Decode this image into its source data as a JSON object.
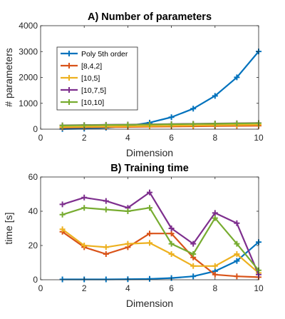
{
  "chart_data": [
    {
      "type": "line",
      "title": "A) Number of parameters",
      "xlabel": "Dimension",
      "ylabel": "# parameters",
      "xlim": [
        0,
        10
      ],
      "ylim": [
        0,
        4000
      ],
      "xticks": [
        "0",
        "2",
        "4",
        "6",
        "8",
        "10"
      ],
      "yticks": [
        "0",
        "1000",
        "2000",
        "3000",
        "4000"
      ],
      "legend_position": "top-left",
      "marker": "plus",
      "x": [
        1,
        2,
        3,
        4,
        5,
        6,
        7,
        8,
        9,
        10
      ],
      "series": [
        {
          "name": "Poly 5th order",
          "color": "#0072BD",
          "values": [
            6,
            21,
            56,
            126,
            252,
            462,
            792,
            1287,
            2002,
            3003
          ]
        },
        {
          "name": "[8,4,2]",
          "color": "#D95319",
          "values": [
            63,
            71,
            79,
            87,
            95,
            103,
            111,
            119,
            127,
            135
          ]
        },
        {
          "name": "[10,5]",
          "color": "#EDB120",
          "values": [
            81,
            91,
            101,
            111,
            121,
            131,
            141,
            151,
            161,
            171
          ]
        },
        {
          "name": "[10,7,5]",
          "color": "#7E2F8E",
          "values": [
            148,
            158,
            168,
            178,
            188,
            198,
            208,
            218,
            228,
            238
          ]
        },
        {
          "name": "[10,10]",
          "color": "#77AC30",
          "values": [
            141,
            151,
            161,
            171,
            181,
            191,
            201,
            211,
            221,
            231
          ]
        }
      ]
    },
    {
      "type": "line",
      "title": "B) Training time",
      "xlabel": "Dimension",
      "ylabel": "time [s]",
      "xlim": [
        0,
        10
      ],
      "ylim": [
        0,
        60
      ],
      "xticks": [
        "0",
        "2",
        "4",
        "6",
        "8",
        "10"
      ],
      "yticks": [
        "0",
        "20",
        "40",
        "60"
      ],
      "marker": "plus",
      "x": [
        1,
        2,
        3,
        4,
        5,
        6,
        7,
        8,
        9,
        10
      ],
      "series": [
        {
          "color": "#0072BD",
          "values": [
            0.2,
            0.2,
            0.2,
            0.3,
            0.5,
            1,
            2,
            5,
            11,
            22
          ]
        },
        {
          "color": "#D95319",
          "values": [
            28,
            19,
            15,
            19,
            27,
            27,
            13,
            3,
            2,
            1.5
          ]
        },
        {
          "color": "#EDB120",
          "values": [
            29.5,
            20,
            19,
            21,
            21.5,
            15,
            8,
            8,
            15,
            4
          ]
        },
        {
          "color": "#7E2F8E",
          "values": [
            44,
            48,
            46,
            42,
            51,
            30,
            21,
            39,
            33,
            3
          ]
        },
        {
          "color": "#77AC30",
          "values": [
            38,
            42,
            41,
            40,
            42,
            21,
            15,
            36,
            21,
            5.5
          ]
        }
      ]
    }
  ]
}
